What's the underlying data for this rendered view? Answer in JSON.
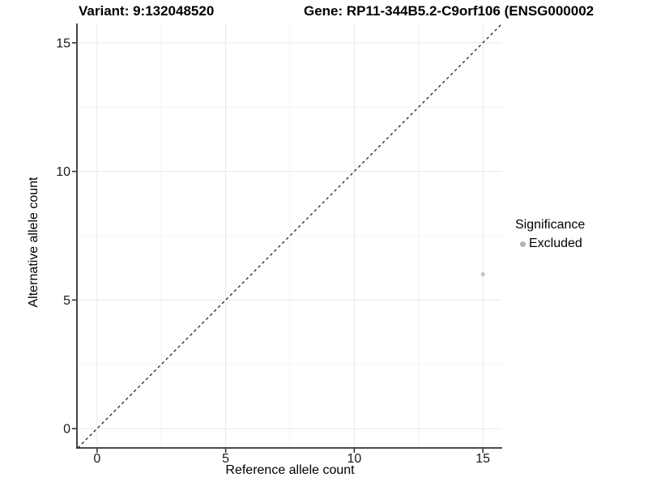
{
  "header": {
    "variant_label": "Variant: 9:132048520",
    "gene_label": "Gene: RP11-344B5.2-C9orf106 (ENSG000002"
  },
  "chart_data": {
    "type": "scatter",
    "title": "Variant: 9:132048520    Gene: RP11-344B5.2-C9orf106 (ENSG000002",
    "xlabel": "Reference allele count",
    "ylabel": "Alternative allele count",
    "xlim": [
      -0.75,
      15.75
    ],
    "ylim": [
      -0.75,
      15.75
    ],
    "x_ticks": [
      0,
      5,
      10,
      15
    ],
    "y_ticks": [
      0,
      5,
      10,
      15
    ],
    "x_minor_ticks": [
      2.5,
      7.5,
      12.5
    ],
    "y_minor_ticks": [
      2.5,
      7.5,
      12.5
    ],
    "grid": true,
    "points": [
      {
        "x": 15,
        "y": 6,
        "series": "Excluded"
      }
    ],
    "reference_line": {
      "type": "identity",
      "style": "dashed",
      "from": [
        -0.75,
        -0.75
      ],
      "to": [
        15.75,
        15.75
      ]
    },
    "legend": {
      "title": "Significance",
      "position": "right",
      "entries": [
        {
          "label": "Excluded",
          "color": "#b2b2b2"
        }
      ]
    },
    "colors": {
      "point": "#bfbfbf",
      "axis_line": "#333333",
      "tick_mark": "#333333",
      "tick_label": "#1a1a1a",
      "grid_major": "#e8e8e8",
      "grid_minor": "#f3f3f3",
      "dashed_line": "#111111",
      "background": "#ffffff"
    }
  }
}
